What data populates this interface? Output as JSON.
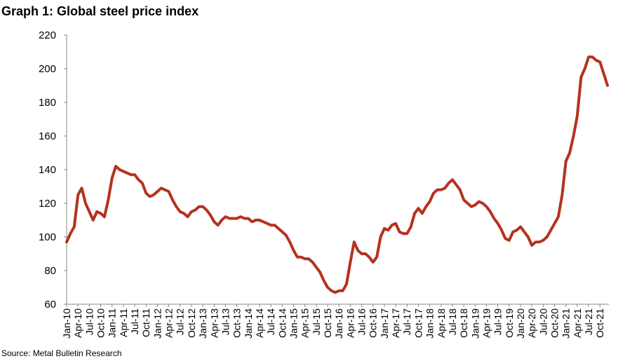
{
  "chart_data": {
    "type": "line",
    "title": "Graph 1: Global steel price index",
    "source": "Source: Metal Bulletin Research",
    "categories": [
      "Jan-10",
      null,
      null,
      "Apr-10",
      null,
      null,
      "Jul-10",
      null,
      null,
      "Oct-10",
      null,
      null,
      "Jan-11",
      null,
      null,
      "Apr-11",
      null,
      null,
      "Jul-11",
      null,
      null,
      "Oct-11",
      null,
      null,
      "Jan-12",
      null,
      null,
      "Apr-12",
      null,
      null,
      "Jul-12",
      null,
      null,
      "Oct-12",
      null,
      null,
      "Jan-13",
      null,
      null,
      "Apr-13",
      null,
      null,
      "Jul-13",
      null,
      null,
      "Oct-13",
      null,
      null,
      "Jan-14",
      null,
      null,
      "Apr-14",
      null,
      null,
      "Jul-14",
      null,
      null,
      "Oct-14",
      null,
      null,
      "Jan-15",
      null,
      null,
      "Apr-15",
      null,
      null,
      "Jul-15",
      null,
      null,
      "Oct-15",
      null,
      null,
      "Jan-16",
      null,
      null,
      "Apr-16",
      null,
      null,
      "Jul-16",
      null,
      null,
      "Oct-16",
      null,
      null,
      "Jan-17",
      null,
      null,
      "Apr-17",
      null,
      null,
      "Jul-17",
      null,
      null,
      "Oct-17",
      null,
      null,
      "Jan-18",
      null,
      null,
      "Apr-18",
      null,
      null,
      "Jul-18",
      null,
      null,
      "Oct-18",
      null,
      null,
      "Jan-19",
      null,
      null,
      "Apr-19",
      null,
      null,
      "Jul-19",
      null,
      null,
      "Oct-19",
      null,
      null,
      "Jan-20",
      null,
      null,
      "Apr-20",
      null,
      null,
      "Jul-20",
      null,
      null,
      "Oct-20",
      null,
      null,
      "Jan-21",
      null,
      null,
      "Apr-21",
      null,
      null,
      "Jul-21",
      null,
      null,
      "Oct-21",
      null,
      null
    ],
    "values": [
      97,
      102,
      106,
      125,
      129,
      120,
      115,
      110,
      115,
      114,
      112,
      122,
      135,
      142,
      140,
      139,
      138,
      137,
      137,
      134,
      132,
      126,
      124,
      125,
      127,
      129,
      128,
      127,
      122,
      118,
      115,
      114,
      112,
      115,
      116,
      118,
      118,
      116,
      113,
      109,
      107,
      110,
      112,
      111,
      111,
      111,
      112,
      111,
      111,
      109,
      110,
      110,
      109,
      108,
      107,
      107,
      105,
      103,
      101,
      97,
      92,
      88,
      88,
      87,
      87,
      85,
      82,
      79,
      74,
      70,
      68,
      67,
      68,
      68,
      72,
      85,
      97,
      92,
      90,
      90,
      88,
      85,
      88,
      100,
      105,
      104,
      107,
      108,
      103,
      102,
      102,
      106,
      114,
      117,
      114,
      118,
      121,
      126,
      128,
      128,
      129,
      132,
      134,
      131,
      128,
      122,
      120,
      118,
      119,
      121,
      120,
      118,
      115,
      111,
      108,
      104,
      99,
      98,
      103,
      104,
      106,
      103,
      100,
      95,
      97,
      97,
      98,
      100,
      104,
      108,
      112,
      125,
      145,
      150,
      160,
      172,
      195,
      200,
      207,
      207,
      205,
      204,
      197,
      190
    ],
    "color": "#b5321f",
    "ylim": [
      60,
      220
    ],
    "yticks": [
      60,
      80,
      100,
      120,
      140,
      160,
      180,
      200,
      220
    ],
    "grid": false
  }
}
